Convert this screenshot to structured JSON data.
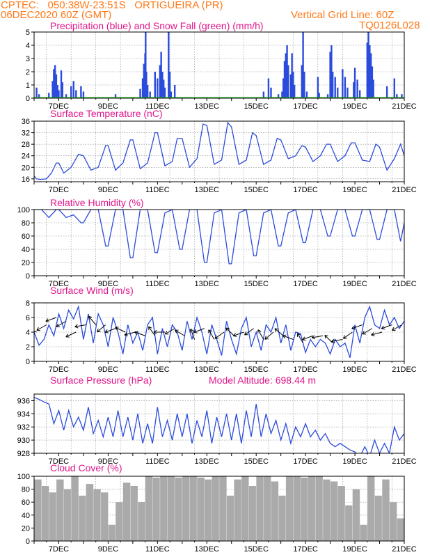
{
  "header": {
    "line1_left": "CPTEC:   050:38W-23:51S   ORTIGUEIRA (PR)",
    "line2_left": "06DEC2020 60Z (GMT)",
    "line2_right": "Vertical Grid Line: 60Z",
    "line3_right": "TQ0126L028"
  },
  "colors": {
    "header": "#ff7a1a",
    "title": "#e0168c",
    "line": "#2a4bdc",
    "snow": "#22bb22",
    "cloud": "#aaaaaa",
    "grid": "#888888"
  },
  "x_ticks": [
    "7DEC",
    "9DEC",
    "11DEC",
    "13DEC",
    "15DEC",
    "17DEC",
    "19DEC",
    "21DEC"
  ],
  "model_altitude_label": "Model Altitude: 698.44 m",
  "chart_data": [
    {
      "type": "bar",
      "title": "Precipitation (blue) and Snow Fall (green) (mm/h)",
      "ylim": [
        0,
        5
      ],
      "yticks": [
        "0",
        "1",
        "2",
        "3",
        "4",
        "5"
      ],
      "x_range_days": [
        6.0,
        21.0
      ],
      "series": [
        {
          "name": "Precipitation",
          "color": "#2a4bdc",
          "points": [
            [
              6.1,
              0.8
            ],
            [
              6.2,
              0.3
            ],
            [
              6.6,
              0.4
            ],
            [
              6.75,
              1.3
            ],
            [
              6.8,
              2.2
            ],
            [
              6.85,
              2.5
            ],
            [
              6.9,
              1.8
            ],
            [
              6.95,
              1.0
            ],
            [
              7.0,
              0.6
            ],
            [
              7.1,
              2.1
            ],
            [
              7.15,
              1.2
            ],
            [
              7.3,
              0.3
            ],
            [
              7.5,
              0.9
            ],
            [
              7.6,
              1.3
            ],
            [
              7.7,
              0.6
            ],
            [
              7.9,
              0.9
            ],
            [
              8.0,
              0.5
            ],
            [
              9.3,
              0.3
            ],
            [
              10.3,
              0.7
            ],
            [
              10.4,
              1.5
            ],
            [
              10.45,
              2.6
            ],
            [
              10.5,
              3.4
            ],
            [
              10.52,
              5.0
            ],
            [
              10.55,
              2.0
            ],
            [
              10.6,
              1.0
            ],
            [
              10.7,
              0.5
            ],
            [
              10.9,
              2.0
            ],
            [
              11.0,
              1.5
            ],
            [
              11.1,
              2.5
            ],
            [
              11.15,
              3.5
            ],
            [
              11.2,
              2.0
            ],
            [
              11.25,
              1.4
            ],
            [
              11.3,
              0.8
            ],
            [
              11.45,
              5.0
            ],
            [
              11.5,
              2.0
            ],
            [
              11.55,
              0.5
            ],
            [
              11.7,
              1.0
            ],
            [
              15.3,
              0.5
            ],
            [
              15.5,
              1.5
            ],
            [
              15.6,
              0.8
            ],
            [
              15.9,
              0.3
            ],
            [
              16.05,
              0.5
            ],
            [
              16.1,
              1.5
            ],
            [
              16.15,
              2.8
            ],
            [
              16.2,
              3.4
            ],
            [
              16.25,
              4.0
            ],
            [
              16.3,
              2.5
            ],
            [
              16.4,
              1.8
            ],
            [
              16.45,
              3.4
            ],
            [
              16.5,
              2.0
            ],
            [
              16.55,
              1.0
            ],
            [
              16.85,
              2.5
            ],
            [
              16.9,
              5.0
            ],
            [
              16.95,
              2.0
            ],
            [
              17.05,
              0.5
            ],
            [
              17.5,
              1.6
            ],
            [
              17.55,
              0.4
            ],
            [
              17.9,
              0.3
            ],
            [
              18.0,
              3.5
            ],
            [
              18.05,
              4.0
            ],
            [
              18.1,
              2.0
            ],
            [
              18.2,
              1.6
            ],
            [
              18.3,
              0.8
            ],
            [
              18.5,
              2.2
            ],
            [
              18.6,
              1.6
            ],
            [
              18.7,
              0.8
            ],
            [
              18.95,
              1.2
            ],
            [
              19.0,
              2.3
            ],
            [
              19.1,
              1.4
            ],
            [
              19.2,
              0.6
            ],
            [
              19.5,
              4.2
            ],
            [
              19.55,
              5.0
            ],
            [
              19.6,
              4.0
            ],
            [
              19.65,
              3.4
            ],
            [
              19.7,
              2.4
            ],
            [
              19.75,
              1.4
            ],
            [
              20.3,
              0.9
            ],
            [
              20.6,
              1.5
            ],
            [
              20.7,
              0.3
            ],
            [
              20.9,
              0.3
            ]
          ]
        },
        {
          "name": "Snow Fall",
          "color": "#22bb22",
          "points": [
            [
              6.0,
              0
            ],
            [
              21.0,
              0
            ]
          ]
        }
      ]
    },
    {
      "type": "line",
      "title": "Surface Temperature (nC)",
      "ylim": [
        15,
        36
      ],
      "yticks": [
        "16",
        "20",
        "24",
        "28",
        "32",
        "36"
      ],
      "x": [
        6.0,
        6.1,
        6.25,
        6.5,
        6.7,
        6.9,
        7.0,
        7.2,
        7.5,
        7.8,
        8.0,
        8.3,
        8.6,
        8.9,
        9.0,
        9.3,
        9.6,
        9.9,
        10.0,
        10.3,
        10.6,
        10.9,
        11.0,
        11.3,
        11.6,
        11.8,
        12.0,
        12.3,
        12.6,
        12.85,
        13.0,
        13.3,
        13.6,
        13.85,
        14.0,
        14.3,
        14.6,
        14.85,
        15.0,
        15.3,
        15.6,
        15.85,
        16.0,
        16.3,
        16.6,
        16.85,
        17.0,
        17.3,
        17.6,
        17.85,
        18.0,
        18.3,
        18.6,
        18.85,
        19.0,
        19.3,
        19.6,
        19.85,
        20.0,
        20.3,
        20.6,
        20.85,
        21.0
      ],
      "values": [
        17,
        16,
        15.8,
        16,
        18,
        21.5,
        21.5,
        18,
        20,
        24.5,
        24,
        19,
        20,
        27.5,
        27.5,
        19,
        21.5,
        29.5,
        29.5,
        19.5,
        21.5,
        32,
        32,
        20.5,
        22,
        30,
        30,
        20,
        23,
        35,
        34.5,
        21,
        22.5,
        35.5,
        34,
        21,
        22.5,
        32,
        31,
        21,
        22.5,
        30,
        29.5,
        23,
        24,
        27.5,
        27,
        22,
        24,
        28,
        28,
        22,
        24,
        28.5,
        28.5,
        22.5,
        22,
        28,
        27,
        19,
        23,
        28,
        24
      ]
    },
    {
      "type": "line",
      "title": "Relative Humidity (%)",
      "ylim": [
        0,
        100
      ],
      "yticks": [
        "0",
        "20",
        "40",
        "60",
        "80",
        "100"
      ],
      "x": [
        6.0,
        6.3,
        6.6,
        6.9,
        7.0,
        7.3,
        7.6,
        7.9,
        8.0,
        8.3,
        8.6,
        8.9,
        9.0,
        9.3,
        9.6,
        9.9,
        10.0,
        10.3,
        10.6,
        10.9,
        11.0,
        11.3,
        11.6,
        11.9,
        12.0,
        12.3,
        12.6,
        12.9,
        13.0,
        13.3,
        13.6,
        13.9,
        14.0,
        14.3,
        14.6,
        14.9,
        15.0,
        15.3,
        15.6,
        15.9,
        16.0,
        16.3,
        16.6,
        16.9,
        17.0,
        17.3,
        17.6,
        17.9,
        18.0,
        18.3,
        18.6,
        18.9,
        19.0,
        19.3,
        19.6,
        19.9,
        20.0,
        20.3,
        20.6,
        20.85,
        21.0
      ],
      "values": [
        100,
        100,
        88,
        100,
        100,
        88,
        92,
        80,
        80,
        100,
        100,
        45,
        45,
        100,
        100,
        27,
        27,
        100,
        100,
        35,
        35,
        95,
        100,
        40,
        40,
        100,
        100,
        20,
        20,
        95,
        100,
        18,
        18,
        95,
        100,
        30,
        30,
        95,
        100,
        45,
        45,
        95,
        100,
        50,
        50,
        100,
        100,
        60,
        60,
        100,
        100,
        60,
        60,
        100,
        100,
        55,
        55,
        100,
        100,
        52,
        80
      ]
    },
    {
      "type": "line",
      "title": "Surface Wind (m/s)",
      "ylim": [
        0,
        8
      ],
      "yticks": [
        "0",
        "2",
        "4",
        "6",
        "8"
      ],
      "x": [
        6.0,
        6.2,
        6.4,
        6.6,
        6.8,
        7.0,
        7.2,
        7.4,
        7.6,
        7.8,
        8.0,
        8.2,
        8.4,
        8.6,
        8.8,
        9.0,
        9.2,
        9.4,
        9.6,
        9.8,
        10.0,
        10.2,
        10.4,
        10.6,
        10.8,
        11.0,
        11.2,
        11.4,
        11.6,
        11.8,
        12.0,
        12.2,
        12.4,
        12.6,
        12.8,
        13.0,
        13.2,
        13.4,
        13.6,
        13.8,
        14.0,
        14.2,
        14.4,
        14.6,
        14.8,
        15.0,
        15.2,
        15.4,
        15.6,
        15.8,
        16.0,
        16.2,
        16.4,
        16.6,
        16.8,
        17.0,
        17.2,
        17.4,
        17.6,
        17.8,
        18.0,
        18.2,
        18.4,
        18.6,
        18.8,
        19.0,
        19.2,
        19.4,
        19.6,
        19.8,
        20.0,
        20.2,
        20.4,
        20.6,
        20.8,
        21.0
      ],
      "values": [
        4,
        2.2,
        3,
        5,
        3.5,
        6.5,
        4.5,
        7,
        5.8,
        7.5,
        3,
        6.5,
        2.5,
        6.5,
        5,
        2,
        6,
        4,
        1,
        5,
        2.5,
        4,
        1.5,
        5,
        6,
        1,
        4.5,
        2,
        5,
        4,
        1.5,
        5.5,
        3,
        6,
        4,
        1,
        5,
        3,
        0.8,
        5.5,
        3,
        1,
        4.5,
        6,
        2,
        4,
        1.5,
        5,
        4,
        6,
        2.5,
        5,
        1.5,
        4,
        3.8,
        1.2,
        3,
        2,
        3,
        2.5,
        1,
        3,
        2,
        2.5,
        0.5,
        5,
        2.5,
        6,
        7.5,
        5,
        4.5,
        7,
        5,
        6,
        4.5,
        5.5
      ],
      "arrows": [
        [
          6.1,
          155,
          4
        ],
        [
          6.5,
          210,
          5
        ],
        [
          6.9,
          200,
          6
        ],
        [
          7.3,
          210,
          5.5
        ],
        [
          7.7,
          205,
          4
        ],
        [
          8.1,
          190,
          5
        ],
        [
          8.5,
          130,
          5
        ],
        [
          8.9,
          220,
          5
        ],
        [
          9.3,
          200,
          4.5
        ],
        [
          9.7,
          155,
          4
        ],
        [
          10.1,
          195,
          4
        ],
        [
          10.5,
          160,
          3.5
        ],
        [
          10.9,
          125,
          3.5
        ],
        [
          11.3,
          180,
          4
        ],
        [
          11.7,
          210,
          4.5
        ],
        [
          12.1,
          150,
          3.5
        ],
        [
          12.5,
          110,
          3
        ],
        [
          12.9,
          200,
          4.5
        ],
        [
          13.3,
          120,
          3
        ],
        [
          13.7,
          215,
          4
        ],
        [
          14.1,
          135,
          3.5
        ],
        [
          14.5,
          200,
          4
        ],
        [
          14.9,
          215,
          4.5
        ],
        [
          15.3,
          120,
          3
        ],
        [
          15.7,
          220,
          4
        ],
        [
          16.1,
          140,
          3.5
        ],
        [
          16.5,
          160,
          3
        ],
        [
          16.9,
          120,
          2.5
        ],
        [
          17.3,
          200,
          3.5
        ],
        [
          17.7,
          190,
          3.5
        ],
        [
          18.1,
          135,
          2.5
        ],
        [
          18.5,
          190,
          3
        ],
        [
          18.9,
          215,
          4
        ],
        [
          19.3,
          200,
          5
        ],
        [
          19.7,
          210,
          4.5
        ],
        [
          20.1,
          195,
          4
        ],
        [
          20.5,
          200,
          5
        ],
        [
          20.9,
          210,
          5
        ]
      ]
    },
    {
      "type": "line",
      "title": "Surface Pressure (hPa)",
      "ylim": [
        928,
        937
      ],
      "yticks": [
        "928",
        "930",
        "932",
        "934",
        "936"
      ],
      "x": [
        6.0,
        6.2,
        6.4,
        6.6,
        6.8,
        7.0,
        7.2,
        7.4,
        7.6,
        7.8,
        8.0,
        8.2,
        8.4,
        8.6,
        8.8,
        9.0,
        9.2,
        9.4,
        9.6,
        9.8,
        10.0,
        10.2,
        10.4,
        10.6,
        10.8,
        11.0,
        11.2,
        11.4,
        11.6,
        11.8,
        12.0,
        12.2,
        12.4,
        12.6,
        12.8,
        13.0,
        13.2,
        13.4,
        13.6,
        13.8,
        14.0,
        14.2,
        14.4,
        14.6,
        14.8,
        15.0,
        15.2,
        15.4,
        15.6,
        15.8,
        16.0,
        16.2,
        16.4,
        16.6,
        16.8,
        17.0,
        17.2,
        17.4,
        17.6,
        17.8,
        18.0,
        18.2,
        18.4,
        18.6,
        18.8,
        19.0,
        19.2,
        19.4,
        19.6,
        19.8,
        20.0,
        20.2,
        20.4,
        20.6,
        20.8,
        21.0
      ],
      "values": [
        936.5,
        936.2,
        935.8,
        935.5,
        932.5,
        934.5,
        931.5,
        934.5,
        932,
        933.5,
        931.5,
        935,
        931,
        933,
        930.5,
        933.5,
        930.5,
        934.5,
        930.5,
        933.5,
        930,
        934,
        929.5,
        932.5,
        929.5,
        935,
        930.5,
        933,
        930,
        934,
        930.5,
        934,
        929.5,
        933,
        930.5,
        934.5,
        929.5,
        933.5,
        930.5,
        934,
        930,
        934,
        929.5,
        934.5,
        930.5,
        935.5,
        930.5,
        934,
        931,
        933,
        930,
        932.5,
        929.5,
        932,
        930.5,
        932.5,
        930.5,
        931.5,
        930,
        931,
        929.5,
        929,
        929.5,
        929,
        928.5,
        928.2,
        927.5,
        929,
        927.5,
        930,
        928,
        929.5,
        928,
        932,
        930,
        931
      ]
    },
    {
      "type": "bar",
      "title": "Cloud Cover (%)",
      "ylim": [
        0,
        100
      ],
      "yticks": [
        "0",
        "20",
        "40",
        "60",
        "80",
        "100"
      ],
      "x": [
        6.0,
        6.3,
        6.6,
        6.9,
        7.2,
        7.5,
        7.8,
        8.1,
        8.4,
        8.7,
        9.0,
        9.3,
        9.6,
        9.9,
        10.2,
        10.5,
        10.8,
        11.1,
        11.4,
        11.7,
        12.0,
        12.3,
        12.6,
        12.9,
        13.2,
        13.5,
        13.8,
        14.1,
        14.4,
        14.7,
        15.0,
        15.3,
        15.6,
        15.9,
        16.2,
        16.5,
        16.8,
        17.1,
        17.4,
        17.7,
        18.0,
        18.3,
        18.6,
        18.9,
        19.2,
        19.5,
        19.8,
        20.1,
        20.4,
        20.7,
        21.0
      ],
      "values": [
        95,
        85,
        75,
        95,
        80,
        100,
        70,
        88,
        80,
        75,
        25,
        60,
        90,
        85,
        60,
        100,
        98,
        100,
        100,
        98,
        100,
        100,
        98,
        95,
        100,
        100,
        70,
        95,
        100,
        85,
        100,
        100,
        92,
        70,
        100,
        100,
        98,
        100,
        100,
        95,
        92,
        85,
        55,
        80,
        25,
        100,
        70,
        95,
        60,
        35,
        40
      ]
    }
  ]
}
